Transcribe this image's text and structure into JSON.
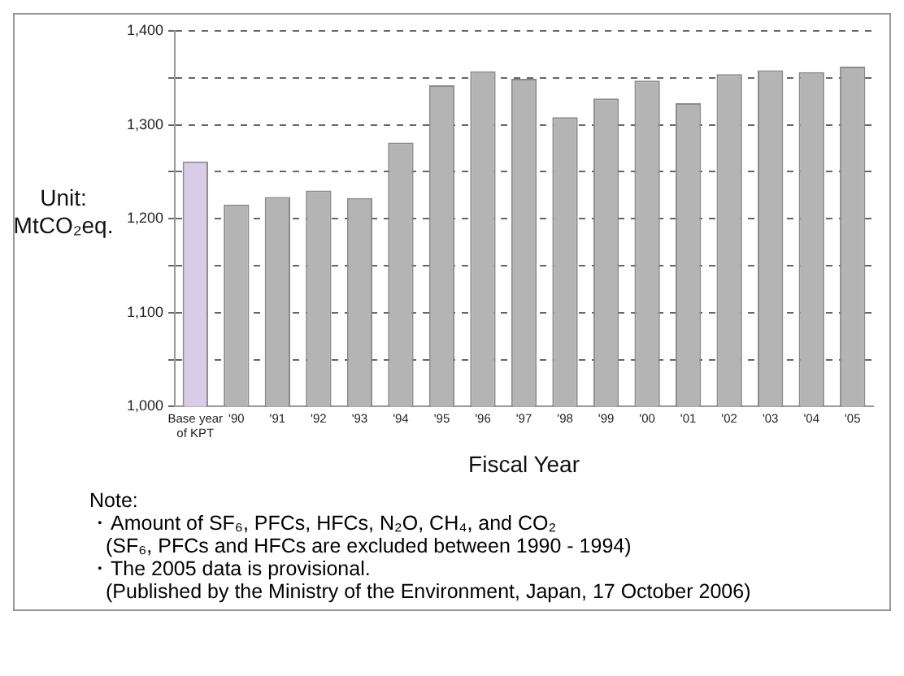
{
  "chart_data": {
    "type": "bar",
    "xlabel": "Fiscal Year",
    "ylabel": "Unit: MtCO₂eq.",
    "categories": [
      "Base year of KPT",
      "'90",
      "'91",
      "'92",
      "'93",
      "'94",
      "'95",
      "'96",
      "'97",
      "'98",
      "'99",
      "'00",
      "'01",
      "'02",
      "'03",
      "'04",
      "'05"
    ],
    "values": [
      1261,
      1215,
      1223,
      1230,
      1222,
      1281,
      1342,
      1357,
      1349,
      1308,
      1328,
      1347,
      1323,
      1354,
      1358,
      1356,
      1362
    ],
    "colors": [
      "#d9cce8",
      "#b4b4b4",
      "#b4b4b4",
      "#b4b4b4",
      "#b4b4b4",
      "#b4b4b4",
      "#b4b4b4",
      "#b4b4b4",
      "#b4b4b4",
      "#b4b4b4",
      "#b4b4b4",
      "#b4b4b4",
      "#b4b4b4",
      "#b4b4b4",
      "#b4b4b4",
      "#b4b4b4",
      "#b4b4b4"
    ],
    "ylim": [
      1000,
      1400
    ],
    "yticks": [
      {
        "value": 1000,
        "label": "1,000"
      },
      {
        "value": 1050,
        "label": null
      },
      {
        "value": 1100,
        "label": "1,100"
      },
      {
        "value": 1150,
        "label": null
      },
      {
        "value": 1200,
        "label": "1,200"
      },
      {
        "value": 1250,
        "label": null
      },
      {
        "value": 1300,
        "label": "1,300"
      },
      {
        "value": 1350,
        "label": null
      },
      {
        "value": 1400,
        "label": "1,400"
      }
    ],
    "grid": "y",
    "line_style": "dashed",
    "legend": false,
    "annotations": [
      "Note:",
      "・Amount of SF₆, PFCs, HFCs, N₂O, CH₄, and CO₂",
      "(SF₆, PFCs and HFCs are excluded between 1990 - 1994)",
      "・The 2005 data is provisional.",
      "(Published by the Ministry of the Environment, Japan, 17 October 2006)"
    ]
  }
}
